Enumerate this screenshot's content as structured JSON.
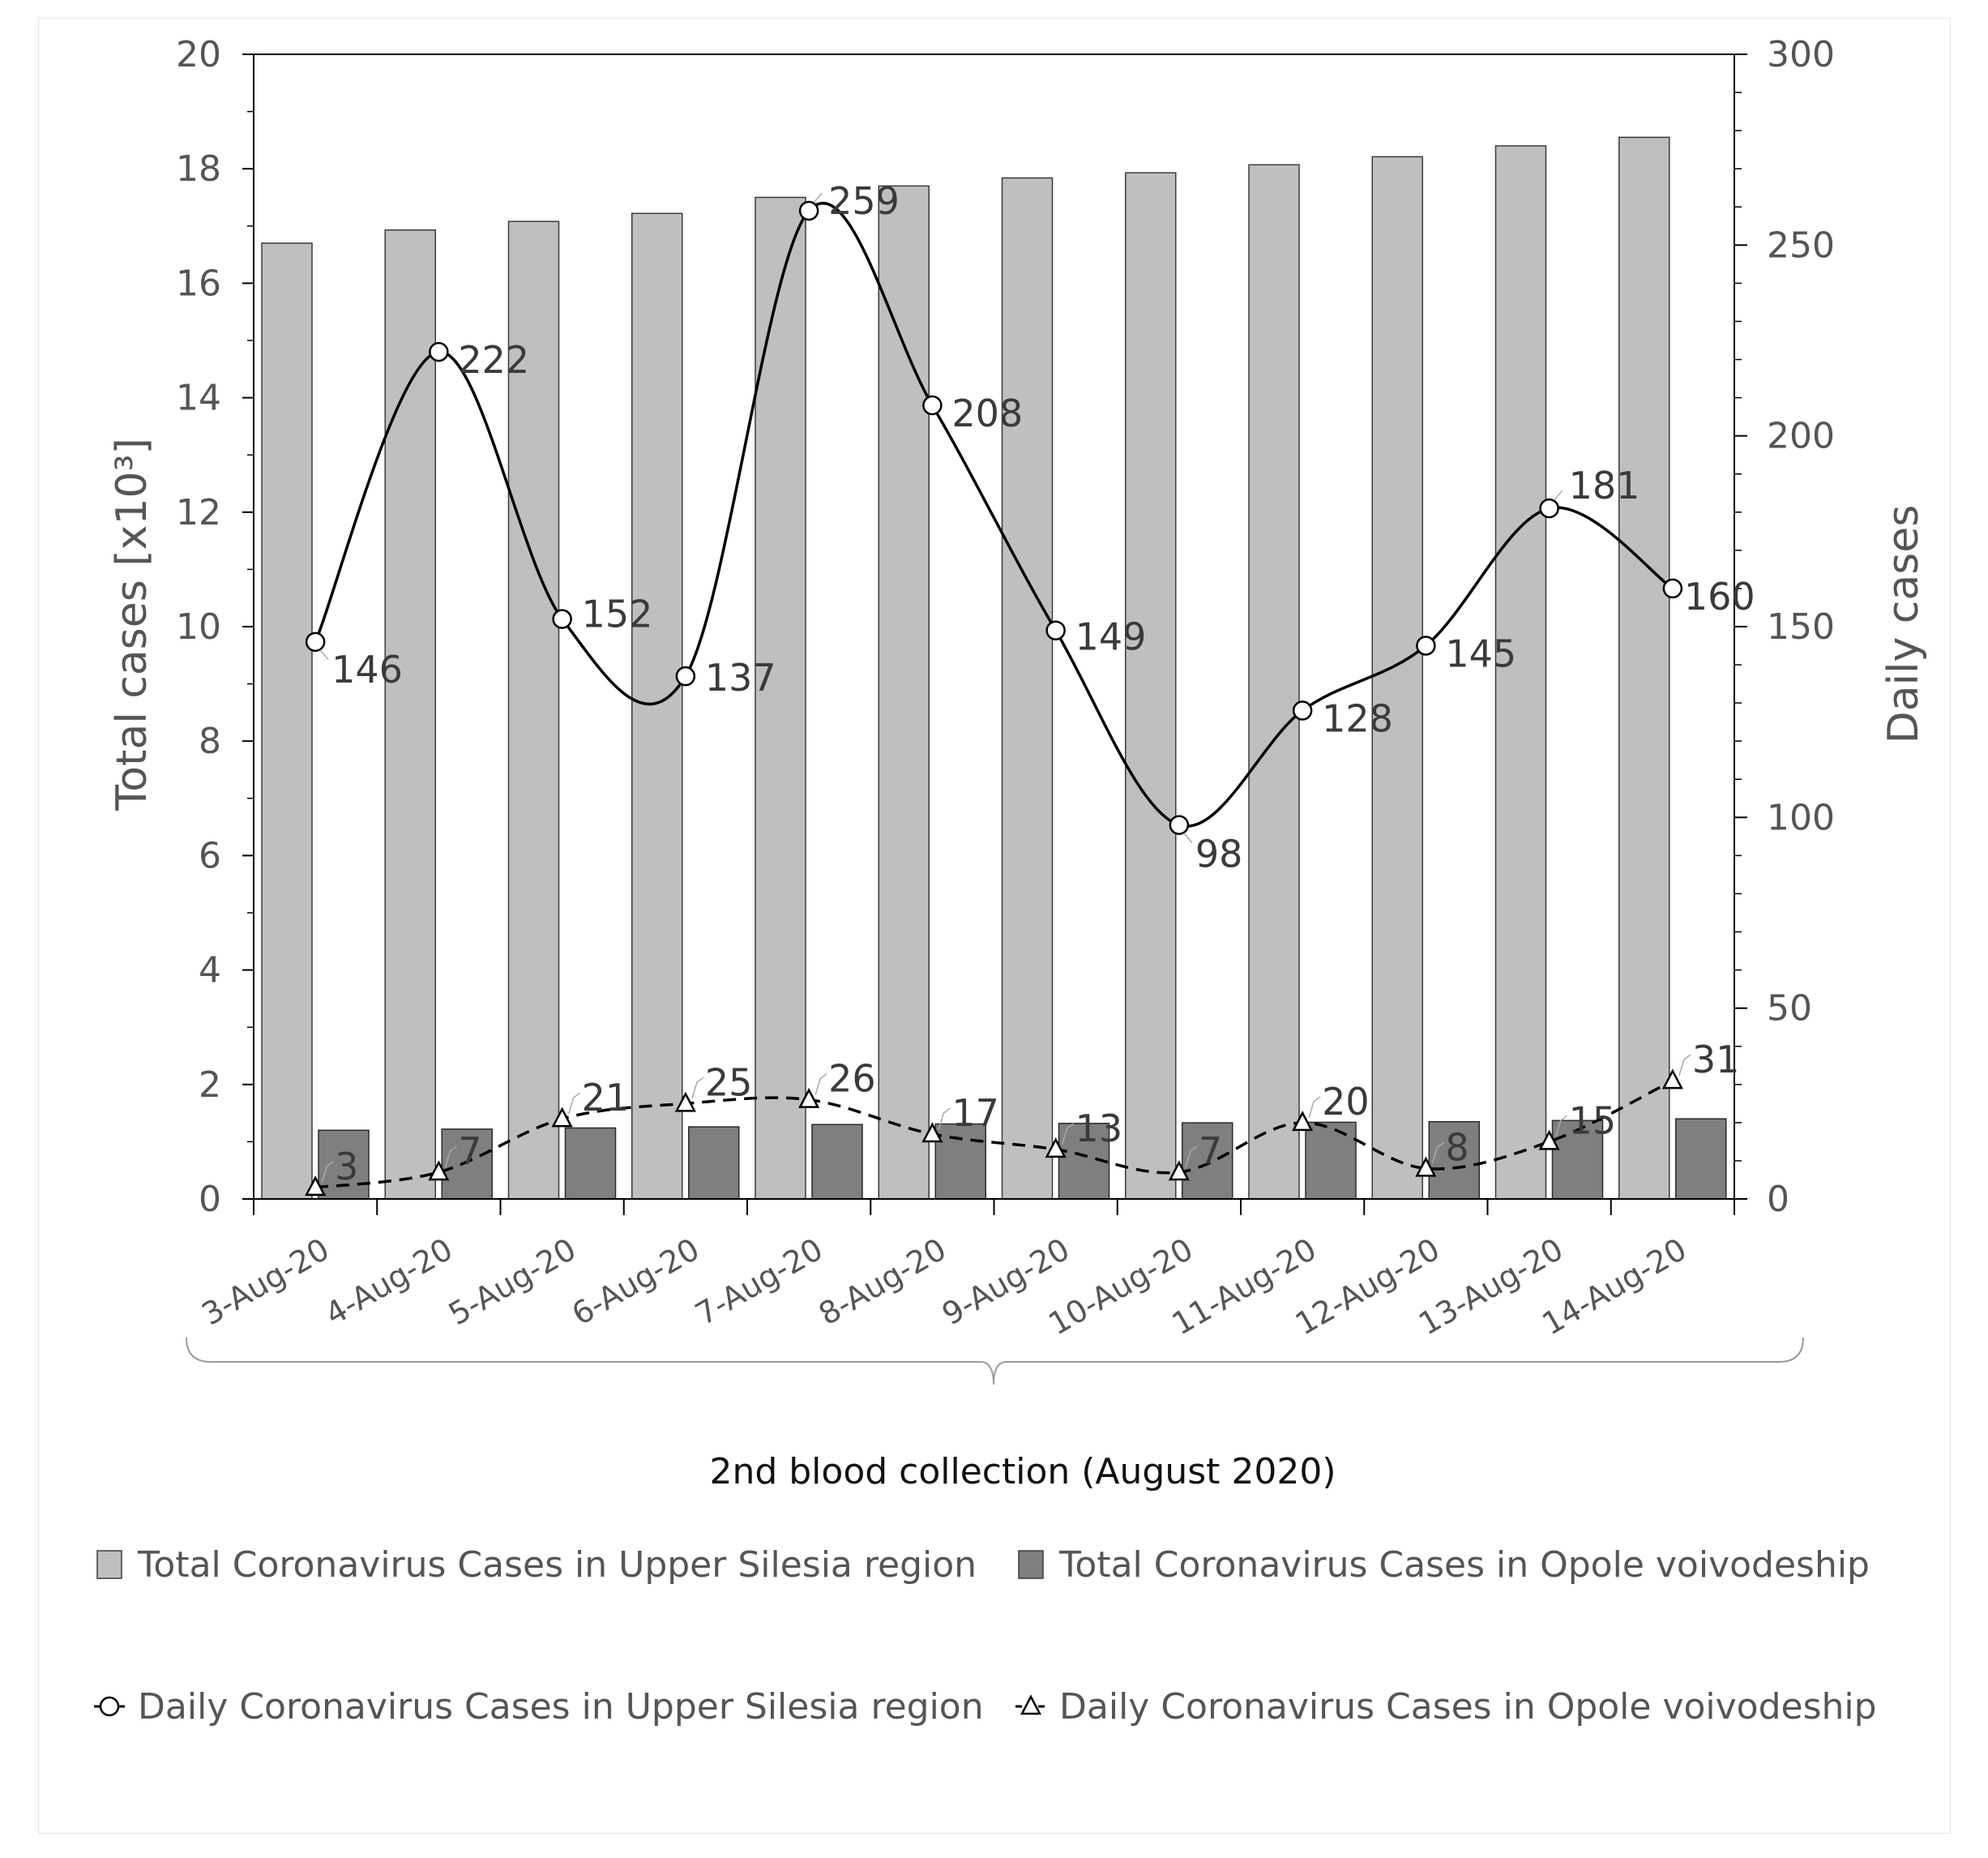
{
  "chart_data": {
    "type": "bar",
    "categories": [
      "3-Aug-20",
      "4-Aug-20",
      "5-Aug-20",
      "6-Aug-20",
      "7-Aug-20",
      "8-Aug-20",
      "9-Aug-20",
      "10-Aug-20",
      "11-Aug-20",
      "12-Aug-20",
      "13-Aug-20",
      "14-Aug-20"
    ],
    "ylabel": "Total cases [x10³]",
    "y2label": "Daily cases",
    "xlabel": "2nd blood collection (August 2020)",
    "ylim": [
      0,
      20
    ],
    "y2lim": [
      0,
      300
    ],
    "yticks": [
      "0",
      "2",
      "4",
      "6",
      "8",
      "10",
      "12",
      "14",
      "16",
      "18",
      "20"
    ],
    "y2ticks": [
      "0",
      "50",
      "100",
      "150",
      "200",
      "250",
      "300"
    ],
    "legend_position": "bottom",
    "grid": false,
    "series": [
      {
        "name": "Total Coronavirus Cases in Upper Silesia region",
        "type": "bar",
        "axis": "left",
        "color": "#bfbfbf",
        "values": [
          16.7,
          16.93,
          17.08,
          17.22,
          17.5,
          17.7,
          17.84,
          17.93,
          18.07,
          18.21,
          18.4,
          18.55
        ]
      },
      {
        "name": "Total Coronavirus Cases in Opole voivodeship",
        "type": "bar",
        "axis": "left",
        "color": "#7f7f7f",
        "values": [
          1.2,
          1.22,
          1.24,
          1.26,
          1.3,
          1.31,
          1.32,
          1.33,
          1.34,
          1.35,
          1.37,
          1.4
        ]
      },
      {
        "name": "Daily Coronavirus Cases in Upper Silesia region",
        "type": "line",
        "axis": "right",
        "style": "solid",
        "marker": "circle",
        "values": [
          146,
          222,
          152,
          137,
          259,
          208,
          149,
          98,
          128,
          145,
          181,
          160
        ],
        "labels": [
          "146",
          "222",
          "152",
          "137",
          "259",
          "208",
          "149",
          "98",
          "128",
          "145",
          "181",
          "160"
        ]
      },
      {
        "name": "Daily Coronavirus Cases in Opole voivodeship",
        "type": "line",
        "axis": "right",
        "style": "dashed",
        "marker": "triangle",
        "values": [
          3,
          7,
          21,
          25,
          26,
          17,
          13,
          7,
          20,
          8,
          15,
          31
        ],
        "labels": [
          "3",
          "7",
          "21",
          "25",
          "26",
          "17",
          "13",
          "7",
          "20",
          "8",
          "15",
          "31"
        ]
      }
    ]
  }
}
